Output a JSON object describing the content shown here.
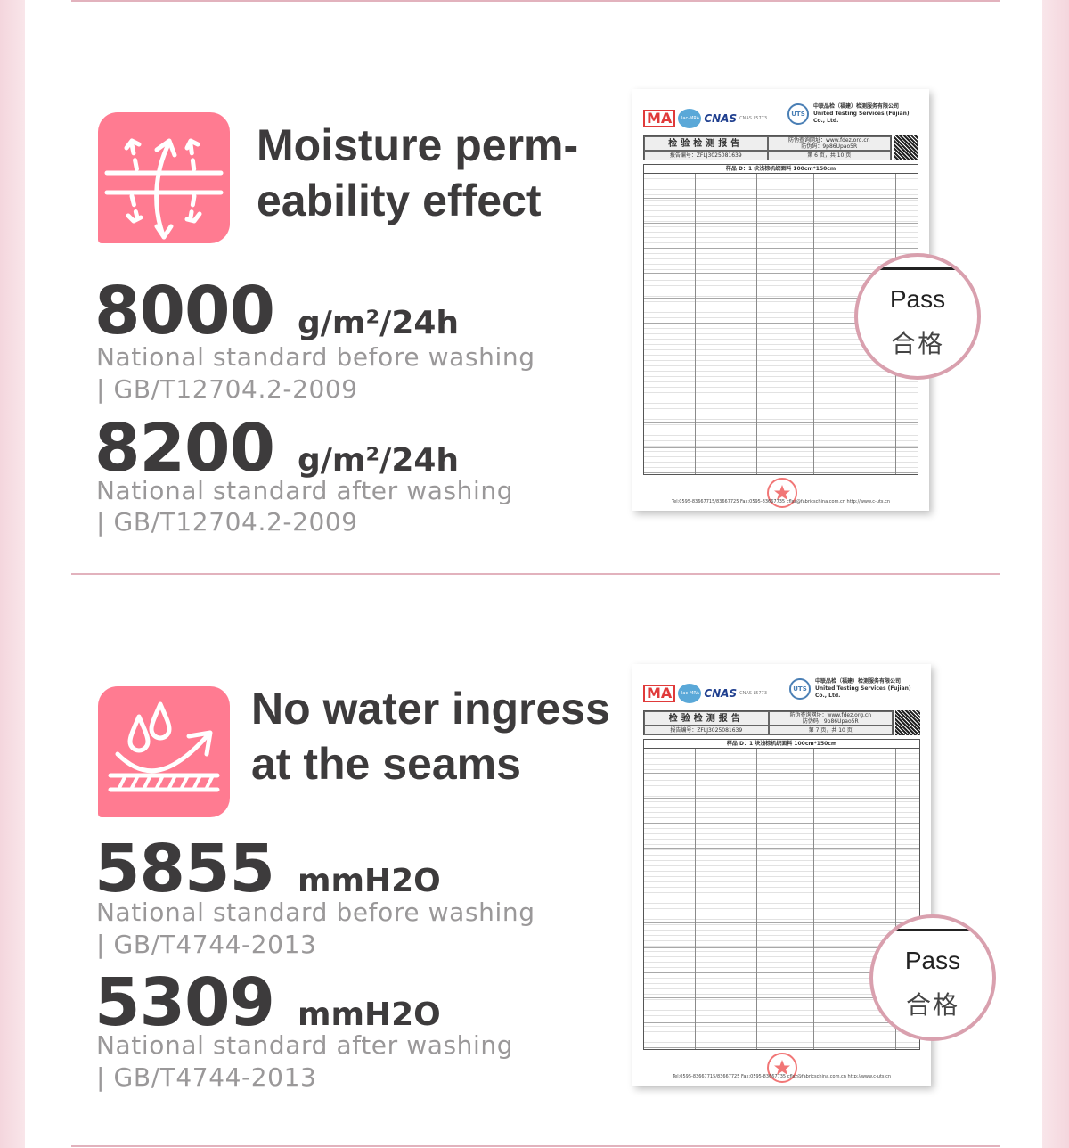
{
  "colors": {
    "accent_pink": "#ff7b91",
    "divider": "#e2b2bd",
    "stamp_border": "#d9a0ae",
    "text_dark": "#3d3b3c",
    "text_gray": "#9a9899"
  },
  "sections": [
    {
      "icon": "moisture-permeability-icon",
      "title_line1": "Moisture perm-",
      "title_line2": "eability effect",
      "metrics": [
        {
          "value": "8000",
          "unit": "g/m²/24h",
          "label": "National standard before washing",
          "standard": "| GB/T12704.2-2009"
        },
        {
          "value": "8200",
          "unit": "g/m²/24h",
          "label": "National standard after washing",
          "standard": "| GB/T12704.2-2009"
        }
      ],
      "report": {
        "ma": "MA",
        "ilac": "ilac-MRA",
        "cnas": "CNAS",
        "cnas_no": "CNAS L5773",
        "uts": "UTS",
        "company_cn": "中联品检（福建）检测服务有限公司",
        "company_en": "United Testing Services (Fujian) Co., Ltd.",
        "title": "检验检测报告",
        "verify_site": "防伪查询网址：www.fdez.org.cn",
        "verify_code": "防伪码：9p86Upao5R",
        "report_no": "报告编号：ZFLJ3025081639",
        "page": "第 6 页，共 10 页",
        "sample": "样品 D：1 块浅棕机织面料 100cm*150cm",
        "footer": "Tel:0595-83667715/83667725   Fax:0595-83667735   cflsz@fabricschina.com.cn   http://www.c-uts.cn"
      },
      "stamp": {
        "en": "Pass",
        "zh": "合格"
      }
    },
    {
      "icon": "waterproof-seam-icon",
      "title_line1": "No water ingress",
      "title_line2": "at the seams",
      "metrics": [
        {
          "value": "5855",
          "unit": "mmH2O",
          "label": "National standard before washing",
          "standard": "| GB/T4744-2013"
        },
        {
          "value": "5309",
          "unit": "mmH2O",
          "label": "National standard after washing",
          "standard": "| GB/T4744-2013"
        }
      ],
      "report": {
        "ma": "MA",
        "ilac": "ilac-MRA",
        "cnas": "CNAS",
        "cnas_no": "CNAS L5773",
        "uts": "UTS",
        "company_cn": "中联品检（福建）检测服务有限公司",
        "company_en": "United Testing Services (Fujian) Co., Ltd.",
        "title": "检验检测报告",
        "verify_site": "防伪查询网址：www.fdez.org.cn",
        "verify_code": "防伪码：9p86Upao5R",
        "report_no": "报告编号：ZFLJ3025081639",
        "page": "第 7 页，共 10 页",
        "sample": "样品 D：1 块浅棕机织面料 100cm*150cm",
        "footer": "Tel:0595-83667715/83667725   Fax:0595-83667735   cflsz@fabricschina.com.cn   http://www.c-uts.cn"
      },
      "stamp": {
        "en": "Pass",
        "zh": "合格"
      }
    }
  ]
}
